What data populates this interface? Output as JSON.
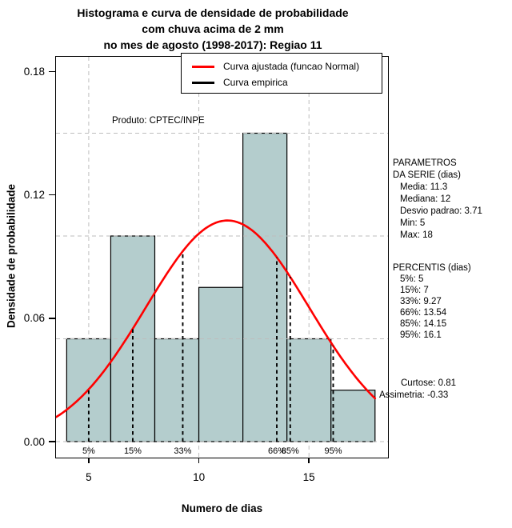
{
  "title": {
    "line1": "Histograma e curva de densidade de probabilidade",
    "line2": "com chuva acima de 2 mm",
    "line3": "no mes de agosto (1998-2017): Regiao 11"
  },
  "product_label": "Produto: CPTEC/INPE",
  "legend": {
    "items": [
      {
        "label": "Curva ajustada (funcao Normal)",
        "color": "#ff0000"
      },
      {
        "label": "Curva empirica",
        "color": "#000000"
      }
    ]
  },
  "stats": {
    "parametros": {
      "title_line1": "PARAMETROS",
      "title_line2": "DA SERIE (dias)",
      "items": [
        "Media: 11.3",
        "Mediana: 12",
        "Desvio padrao: 3.71",
        "Min: 5",
        "Max: 18"
      ]
    },
    "percentis": {
      "title": "PERCENTIS (dias)",
      "items": [
        "5%: 5",
        "15%: 7",
        "33%: 9.27",
        "66%: 13.54",
        "85%: 14.15",
        "95%: 16.1"
      ]
    },
    "curtose": "Curtose: 0.81",
    "assimetria": "Assimetria: -0.33"
  },
  "chart_data": {
    "type": "bar",
    "subtype": "histogram-with-density-curves",
    "title": "Histograma e curva de densidade de probabilidade com chuva acima de 2 mm no mes de agosto (1998-2017): Regiao 11",
    "xlabel": "Numero de dias",
    "ylabel": "Densidade de probabilidade",
    "xlim": [
      3.5,
      18.6
    ],
    "ylim": [
      0,
      0.187
    ],
    "bins": [
      {
        "x0": 4,
        "x1": 6,
        "density": 0.05
      },
      {
        "x0": 6,
        "x1": 8,
        "density": 0.1
      },
      {
        "x0": 8,
        "x1": 10,
        "density": 0.05
      },
      {
        "x0": 10,
        "x1": 12,
        "density": 0.075
      },
      {
        "x0": 12,
        "x1": 14,
        "density": 0.15
      },
      {
        "x0": 14,
        "x1": 16,
        "density": 0.05
      },
      {
        "x0": 16,
        "x1": 18,
        "density": 0.025
      }
    ],
    "normal_curve": {
      "mean": 11.3,
      "sd": 3.71,
      "x_from": 3.52,
      "x_to": 18.0,
      "color": "#ff0000"
    },
    "percentile_lines": [
      {
        "label": "5%",
        "x": 5
      },
      {
        "label": "15%",
        "x": 7
      },
      {
        "label": "33%",
        "x": 9.27
      },
      {
        "label": "66%",
        "x": 13.54
      },
      {
        "label": "85%",
        "x": 14.15
      },
      {
        "label": "95%",
        "x": 16.1
      }
    ],
    "x_ticks": [
      {
        "label": "5",
        "value": 5
      },
      {
        "label": "10",
        "value": 10
      },
      {
        "label": "15",
        "value": 15
      }
    ],
    "y_ticks": [
      {
        "label": "0.00",
        "value": 0
      },
      {
        "label": "0.06",
        "value": 0.06
      },
      {
        "label": "0.12",
        "value": 0.12
      },
      {
        "label": "0.18",
        "value": 0.18
      }
    ],
    "gridlines": {
      "h": [
        0,
        0.05,
        0.1,
        0.15
      ],
      "v": [
        5,
        10,
        15
      ]
    },
    "legend_position": "top",
    "grid": true,
    "colors": {
      "bar_fill": "#b4cdcd",
      "bar_border": "#000000",
      "grid": "#bdbdbd",
      "percentile_line": "#000000",
      "fitted_curve": "#ff0000"
    }
  }
}
